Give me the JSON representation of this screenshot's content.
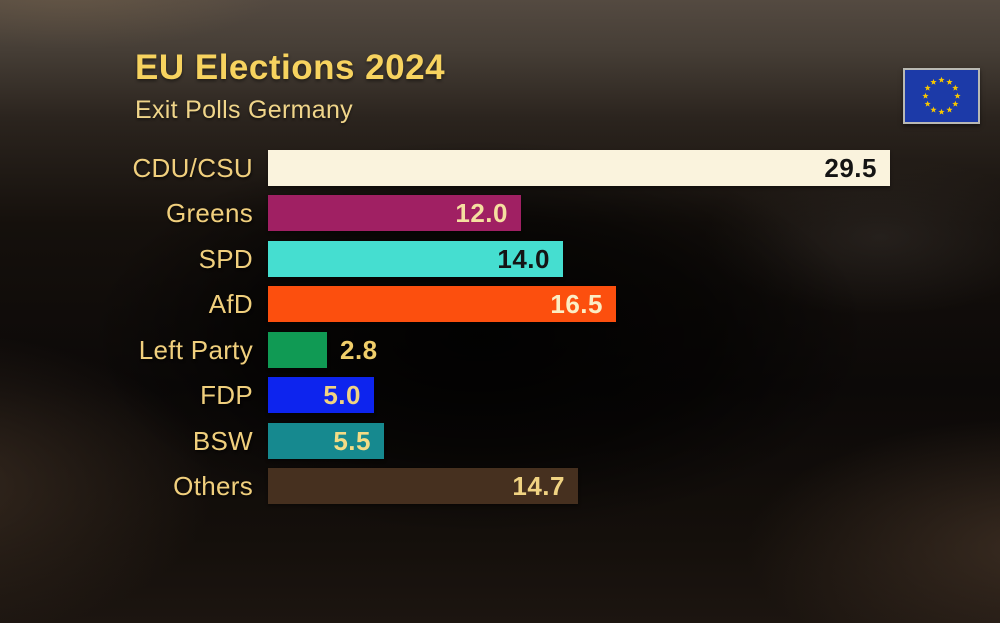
{
  "header": {
    "title": "EU Elections 2024",
    "subtitle": "Exit Polls Germany"
  },
  "flag": {
    "field_color": "#1c3aa8",
    "star_color": "#f7c600",
    "border_color": "#b9b9b3"
  },
  "chart_data": {
    "type": "bar",
    "orientation": "horizontal",
    "title": "EU Elections 2024",
    "subtitle": "Exit Polls Germany",
    "unit": "percent",
    "xlim": [
      0,
      29.5
    ],
    "grid": false,
    "legend": "none",
    "categories": [
      "CDU/CSU",
      "Greens",
      "SPD",
      "AfD",
      "Left Party",
      "FDP",
      "BSW",
      "Others"
    ],
    "values": [
      29.5,
      12.0,
      14.0,
      16.5,
      2.8,
      5.0,
      5.5,
      14.7
    ],
    "bars": [
      {
        "party": "CDU/CSU",
        "value": "29.5",
        "color": "#faf3dd",
        "value_color": "#141414",
        "value_inside": true
      },
      {
        "party": "Greens",
        "value": "12.0",
        "color": "#a02063",
        "value_color": "#f5dfa0",
        "value_inside": true
      },
      {
        "party": "SPD",
        "value": "14.0",
        "color": "#45ded0",
        "value_color": "#141414",
        "value_inside": true
      },
      {
        "party": "AfD",
        "value": "16.5",
        "color": "#fc4f0e",
        "value_color": "#fbeec5",
        "value_inside": true
      },
      {
        "party": "Left Party",
        "value": "2.8",
        "color": "#109a54",
        "value_color": "#f0ce6a",
        "value_inside": false
      },
      {
        "party": "FDP",
        "value": "5.0",
        "color": "#0d24ee",
        "value_color": "#f0d382",
        "value_inside": true
      },
      {
        "party": "BSW",
        "value": "5.5",
        "color": "#16898f",
        "value_color": "#f3dc86",
        "value_inside": true
      },
      {
        "party": "Others",
        "value": "14.7",
        "color": "#46301f",
        "value_color": "#f0d382",
        "value_inside": true
      }
    ]
  }
}
